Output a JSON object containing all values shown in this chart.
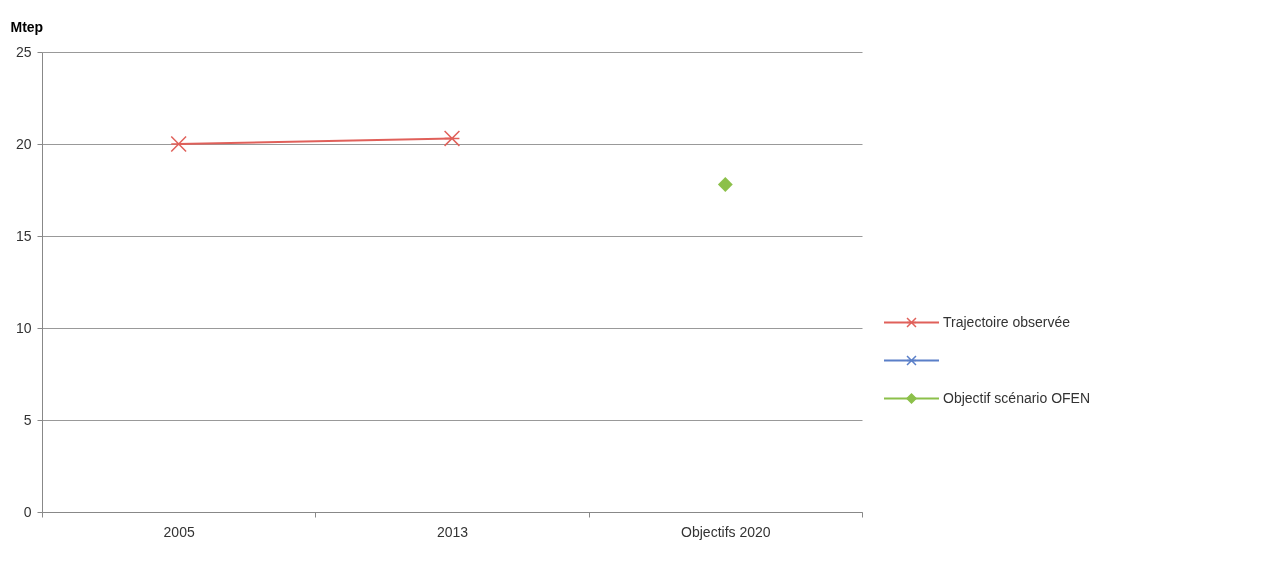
{
  "chart_data": {
    "type": "line",
    "ylabel": "Mtep",
    "categories": [
      "2005",
      "2013",
      "Objectifs 2020"
    ],
    "ylim": [
      0,
      25
    ],
    "yticks": [
      0,
      5,
      10,
      15,
      20,
      25
    ],
    "grid": "y",
    "legend": "right",
    "marker": "cross",
    "series": [
      {
        "name": "Trajectoire observée",
        "color": "#e0605a",
        "values": [
          20.0,
          20.3,
          null
        ]
      },
      {
        "color": "#5a7fc8",
        "values": [
          null,
          null,
          null
        ]
      },
      {
        "name": "Objectif scénario OFEN",
        "color": "#8cc04a",
        "marker": "diamond",
        "values": [
          null,
          null,
          17.8
        ]
      }
    ]
  }
}
